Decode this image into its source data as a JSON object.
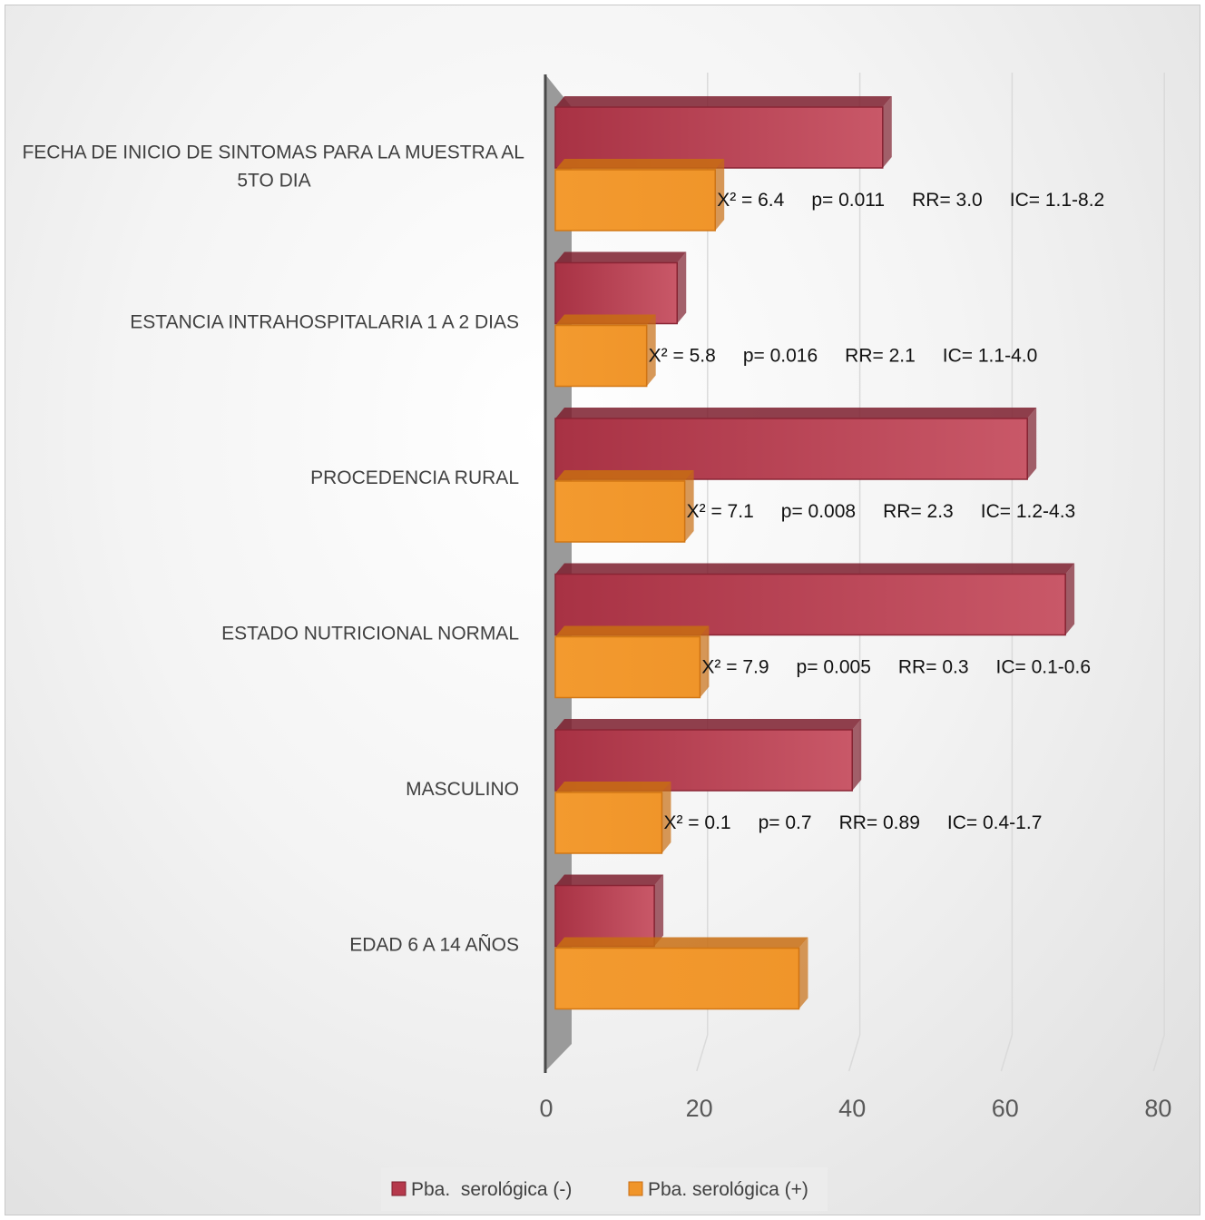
{
  "chart_data": {
    "type": "bar",
    "orientation": "horizontal",
    "categories": [
      "FECHA DE INICIO DE SINTOMAS PARA LA MUESTRA AL 5TO DIA",
      "ESTANCIA INTRAHOSPITALARIA 1 A 2 DIAS",
      "PROCEDENCIA RURAL",
      "ESTADO NUTRICIONAL NORMAL",
      "MASCULINO",
      "EDAD 6 A 14 AÑOS"
    ],
    "series": [
      {
        "name": "Pba.  serológica (-)",
        "color": "#b5394c",
        "values": [
          43,
          16,
          62,
          67,
          39,
          13
        ]
      },
      {
        "name": "Pba. serológica (+)",
        "color": "#f0901f",
        "values": [
          21,
          12,
          17,
          19,
          14,
          32
        ]
      }
    ],
    "annotations": [
      {
        "chi": "X² = 6.4",
        "p": "p= 0.011",
        "rr": "RR= 3.0",
        "ic": "IC= 1.1-8.2"
      },
      {
        "chi": "X² = 5.8",
        "p": "p= 0.016",
        "rr": "RR= 2.1",
        "ic": "IC= 1.1-4.0"
      },
      {
        "chi": "X² = 7.1",
        "p": "p= 0.008",
        "rr": "RR= 2.3",
        "ic": "IC= 1.2-4.3"
      },
      {
        "chi": "X² = 7.9",
        "p": "p= 0.005",
        "rr": "RR= 0.3",
        "ic": "IC= 0.1-0.6"
      },
      {
        "chi": "X² = 0.1",
        "p": "p= 0.7",
        "rr": "RR= 0.89",
        "ic": "IC= 0.4-1.7"
      },
      null
    ],
    "xticks": [
      "0",
      "20",
      "40",
      "60",
      "80"
    ],
    "xlim": [
      0,
      80
    ],
    "grid": true,
    "legend_position": "bottom",
    "title": "",
    "xlabel": "",
    "ylabel": ""
  }
}
